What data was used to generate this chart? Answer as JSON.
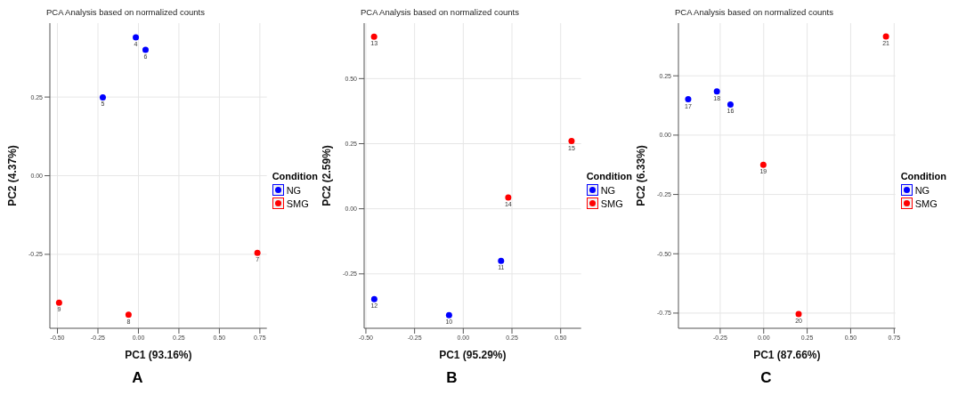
{
  "chart_data": [
    {
      "type": "scatter",
      "title": "PCA Analysis based on normalized counts",
      "xlabel": "PC1 (93.16%)",
      "ylabel": "PC2 (4.37%)",
      "legend_title": "Condition",
      "legend": "right",
      "grid": true,
      "marker": "circle",
      "xlim": [
        -0.547,
        0.793
      ],
      "ylim": [
        -0.485,
        0.485
      ],
      "xticks": [
        {
          "value": -0.5,
          "label": "-0.50"
        },
        -0.25,
        {
          "value": 0,
          "label": "0.00"
        },
        0.25,
        {
          "value": 0.5,
          "label": "0.50"
        },
        0.75
      ],
      "yticks": [
        -0.25,
        {
          "value": 0,
          "label": "0.00"
        },
        0.25
      ],
      "series": [
        {
          "name": "NG",
          "color": "#0000ff",
          "x": [
            -0.016,
            0.044,
            -0.22
          ],
          "values": [
            0.44,
            0.4,
            0.249
          ]
        },
        {
          "name": "SMG",
          "color": "#ff0000",
          "x": [
            0.735,
            -0.49,
            -0.061
          ],
          "values": [
            -0.245,
            -0.404,
            -0.442
          ]
        }
      ],
      "annotations": [
        {
          "text": "4",
          "x": -0.016,
          "y": 0.44
        },
        {
          "text": "6",
          "x": 0.044,
          "y": 0.4
        },
        {
          "text": "5",
          "x": -0.22,
          "y": 0.249
        },
        {
          "text": "7",
          "x": 0.735,
          "y": -0.245
        },
        {
          "text": "9",
          "x": -0.49,
          "y": -0.404
        },
        {
          "text": "8",
          "x": -0.061,
          "y": -0.442
        },
        "A"
      ]
    },
    {
      "type": "scatter",
      "title": "PCA Analysis based on normalized counts",
      "xlabel": "PC1 (95.29%)",
      "ylabel": "PC2 (2.59%)",
      "legend_title": "Condition",
      "legend": "right",
      "grid": true,
      "marker": "circle",
      "xlim": [
        -0.509,
        0.605
      ],
      "ylim": [
        -0.459,
        0.713
      ],
      "xticks": [
        {
          "value": -0.5,
          "label": "-0.50"
        },
        -0.25,
        {
          "value": 0,
          "label": "0.00"
        },
        0.25,
        {
          "value": 0.5,
          "label": "0.50"
        }
      ],
      "yticks": [
        -0.25,
        {
          "value": 0,
          "label": "0.00"
        },
        0.25,
        {
          "value": 0.5,
          "label": "0.50"
        }
      ],
      "series": [
        {
          "name": "NG",
          "color": "#0000ff",
          "x": [
            0.194,
            -0.457,
            -0.073
          ],
          "values": [
            -0.2,
            -0.347,
            -0.409
          ]
        },
        {
          "name": "SMG",
          "color": "#ff0000",
          "x": [
            -0.458,
            0.556,
            0.231
          ],
          "values": [
            0.661,
            0.26,
            0.043
          ]
        }
      ],
      "annotations": [
        {
          "text": "11",
          "x": 0.194,
          "y": -0.2
        },
        {
          "text": "12",
          "x": -0.457,
          "y": -0.347
        },
        {
          "text": "10",
          "x": -0.073,
          "y": -0.409
        },
        {
          "text": "13",
          "x": -0.458,
          "y": 0.661
        },
        {
          "text": "15",
          "x": 0.556,
          "y": 0.26
        },
        {
          "text": "14",
          "x": 0.231,
          "y": 0.043
        },
        "B"
      ]
    },
    {
      "type": "scatter",
      "title": "PCA Analysis based on normalized counts",
      "xlabel": "PC1 (87.66%)",
      "ylabel": "PC2 (6.33%)",
      "legend_title": "Condition",
      "legend": "right",
      "grid": true,
      "marker": "circle",
      "xlim": [
        -0.49,
        0.757
      ],
      "ylim": [
        -0.814,
        0.472
      ],
      "xticks": [
        -0.25,
        {
          "value": 0,
          "label": "0.00"
        },
        0.25,
        {
          "value": 0.5,
          "label": "0.50"
        },
        0.75
      ],
      "yticks": [
        -0.75,
        {
          "value": -0.5,
          "label": "-0.50"
        },
        -0.25,
        {
          "value": 0,
          "label": "0.00"
        },
        0.25
      ],
      "series": [
        {
          "name": "NG",
          "color": "#0000ff",
          "x": [
            -0.434,
            -0.269,
            -0.191
          ],
          "values": [
            0.151,
            0.184,
            0.129
          ]
        },
        {
          "name": "SMG",
          "color": "#ff0000",
          "x": [
            -0.002,
            0.201,
            0.703
          ],
          "values": [
            -0.125,
            -0.754,
            0.416
          ]
        }
      ],
      "annotations": [
        {
          "text": "17",
          "x": -0.434,
          "y": 0.151
        },
        {
          "text": "18",
          "x": -0.269,
          "y": 0.184
        },
        {
          "text": "16",
          "x": -0.191,
          "y": 0.129
        },
        {
          "text": "19",
          "x": -0.002,
          "y": -0.125
        },
        {
          "text": "20",
          "x": 0.201,
          "y": -0.754
        },
        {
          "text": "21",
          "x": 0.703,
          "y": 0.416
        },
        "C"
      ]
    }
  ]
}
